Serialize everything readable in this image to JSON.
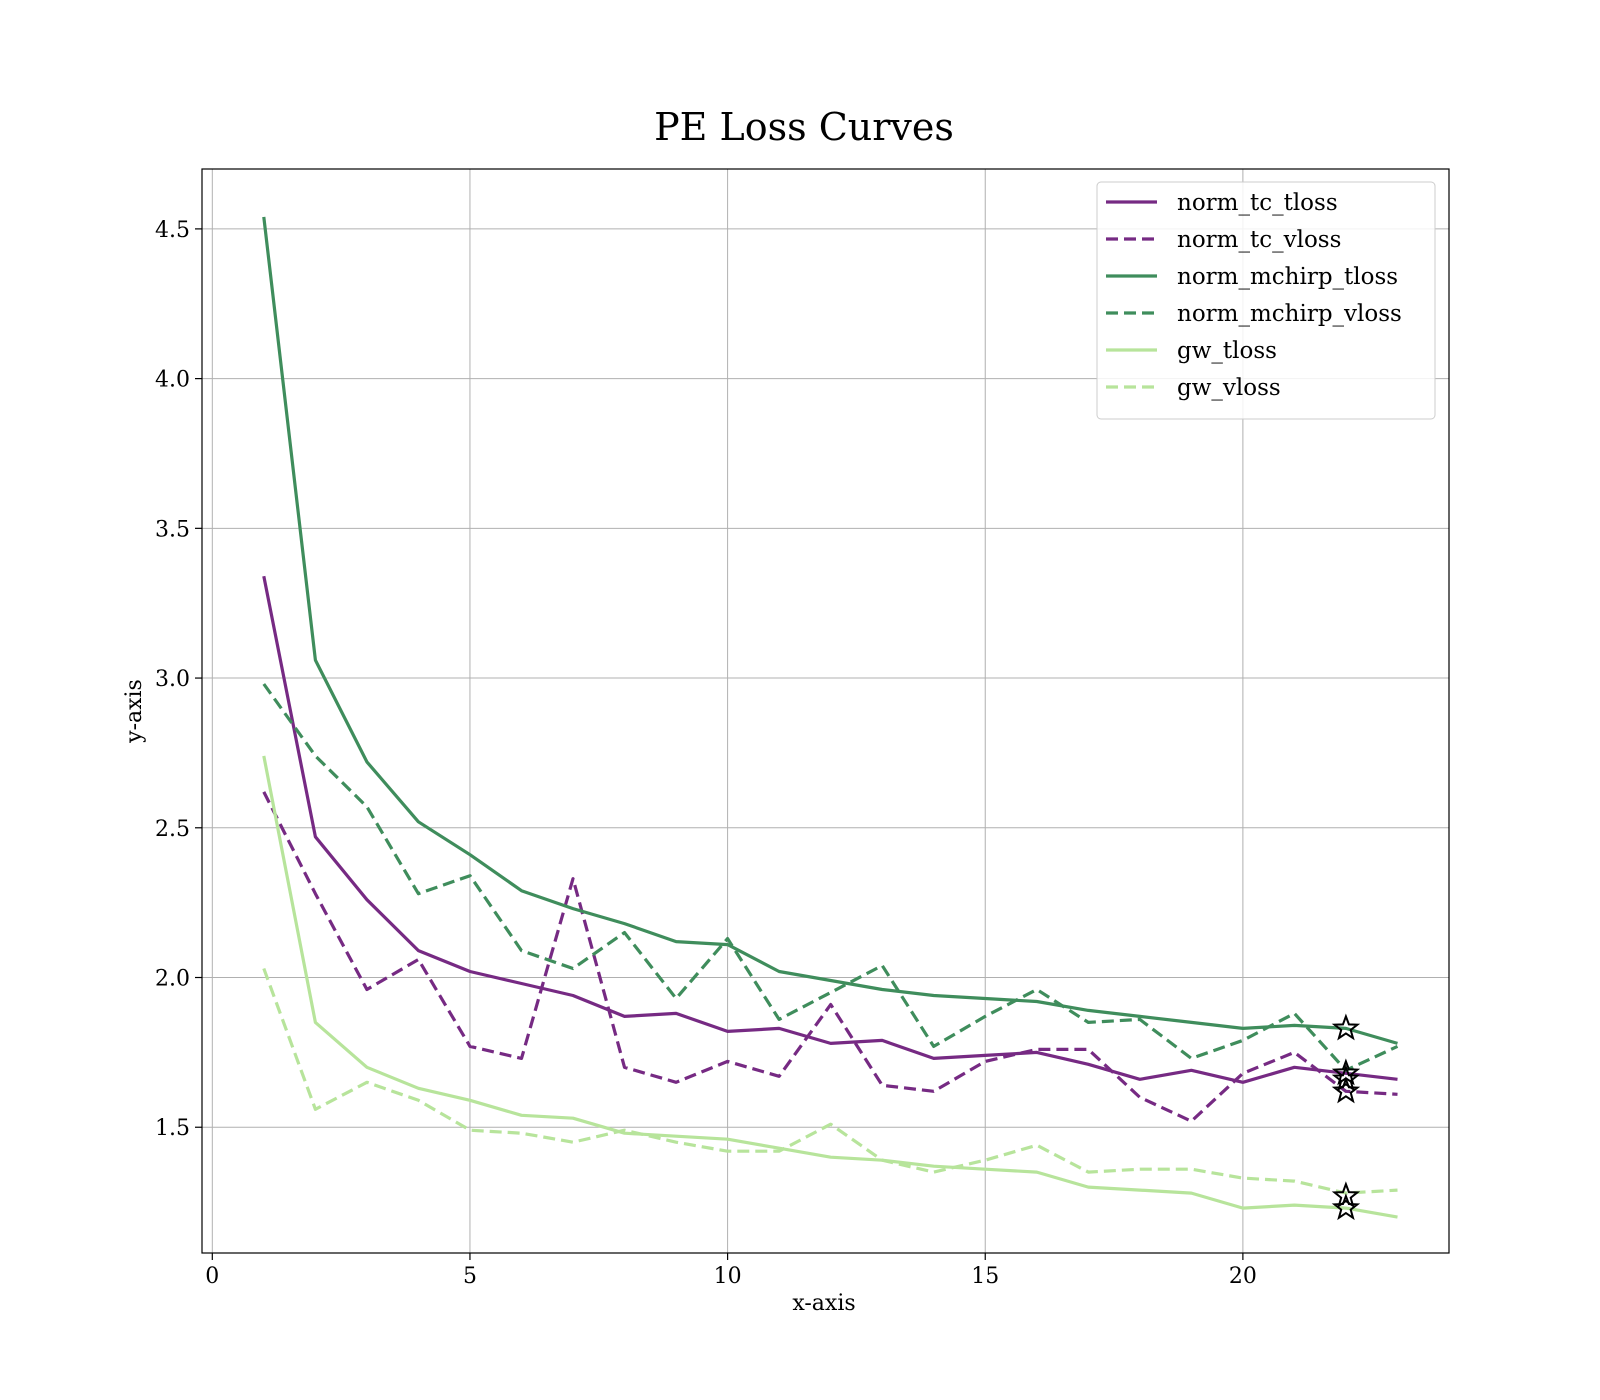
{
  "chart_data": {
    "type": "line",
    "title": "PE Loss Curves",
    "xlabel": "x-axis",
    "ylabel": "y-axis",
    "xlim": [
      -0.2,
      24.0
    ],
    "ylim": [
      1.08,
      4.7
    ],
    "xticks": [
      0,
      5,
      10,
      15,
      20
    ],
    "yticks": [
      1.5,
      2.0,
      2.5,
      3.0,
      3.5,
      4.0,
      4.5
    ],
    "grid": true,
    "legend_position": "top-right",
    "x": [
      1,
      2,
      3,
      4,
      5,
      6,
      7,
      8,
      9,
      10,
      11,
      12,
      13,
      14,
      15,
      16,
      17,
      18,
      19,
      20,
      21,
      22,
      23
    ],
    "series": [
      {
        "name": "norm_tc_tloss",
        "color": "#762a83",
        "dash": "solid",
        "values": [
          3.34,
          2.47,
          2.26,
          2.09,
          2.02,
          1.98,
          1.94,
          1.87,
          1.88,
          1.82,
          1.83,
          1.78,
          1.79,
          1.73,
          1.74,
          1.75,
          1.71,
          1.66,
          1.69,
          1.65,
          1.7,
          1.68,
          1.66
        ]
      },
      {
        "name": "norm_tc_vloss",
        "color": "#762a83",
        "dash": "dashed",
        "values": [
          2.62,
          2.28,
          1.96,
          2.06,
          1.77,
          1.73,
          2.33,
          1.7,
          1.65,
          1.72,
          1.67,
          1.91,
          1.64,
          1.62,
          1.72,
          1.76,
          1.76,
          1.6,
          1.52,
          1.68,
          1.75,
          1.62,
          1.61
        ]
      },
      {
        "name": "norm_mchirp_tloss",
        "color": "#3f8d5c",
        "dash": "solid",
        "values": [
          4.54,
          3.06,
          2.72,
          2.52,
          2.41,
          2.29,
          2.23,
          2.18,
          2.12,
          2.11,
          2.02,
          1.99,
          1.96,
          1.94,
          1.93,
          1.92,
          1.89,
          1.87,
          1.85,
          1.83,
          1.84,
          1.83,
          1.78
        ]
      },
      {
        "name": "norm_mchirp_vloss",
        "color": "#3f8d5c",
        "dash": "dashed",
        "values": [
          2.98,
          2.74,
          2.57,
          2.28,
          2.34,
          2.09,
          2.03,
          2.15,
          1.93,
          2.13,
          1.86,
          1.95,
          2.04,
          1.77,
          1.87,
          1.96,
          1.85,
          1.86,
          1.73,
          1.79,
          1.88,
          1.69,
          1.77
        ]
      },
      {
        "name": "gw_tloss",
        "color": "#b7e49b",
        "dash": "solid",
        "values": [
          2.74,
          1.85,
          1.7,
          1.63,
          1.59,
          1.54,
          1.53,
          1.48,
          1.47,
          1.46,
          1.43,
          1.4,
          1.39,
          1.37,
          1.36,
          1.35,
          1.3,
          1.29,
          1.28,
          1.23,
          1.24,
          1.23,
          1.2
        ]
      },
      {
        "name": "gw_vloss",
        "color": "#b7e49b",
        "dash": "dashed",
        "values": [
          2.03,
          1.56,
          1.65,
          1.59,
          1.49,
          1.48,
          1.45,
          1.49,
          1.45,
          1.42,
          1.42,
          1.51,
          1.39,
          1.35,
          1.39,
          1.44,
          1.35,
          1.36,
          1.36,
          1.33,
          1.32,
          1.28,
          1.29
        ]
      }
    ],
    "markers": {
      "symbol": "star",
      "x": 22,
      "y": [
        1.83,
        1.68,
        1.62,
        1.66,
        1.23,
        1.27
      ]
    }
  }
}
